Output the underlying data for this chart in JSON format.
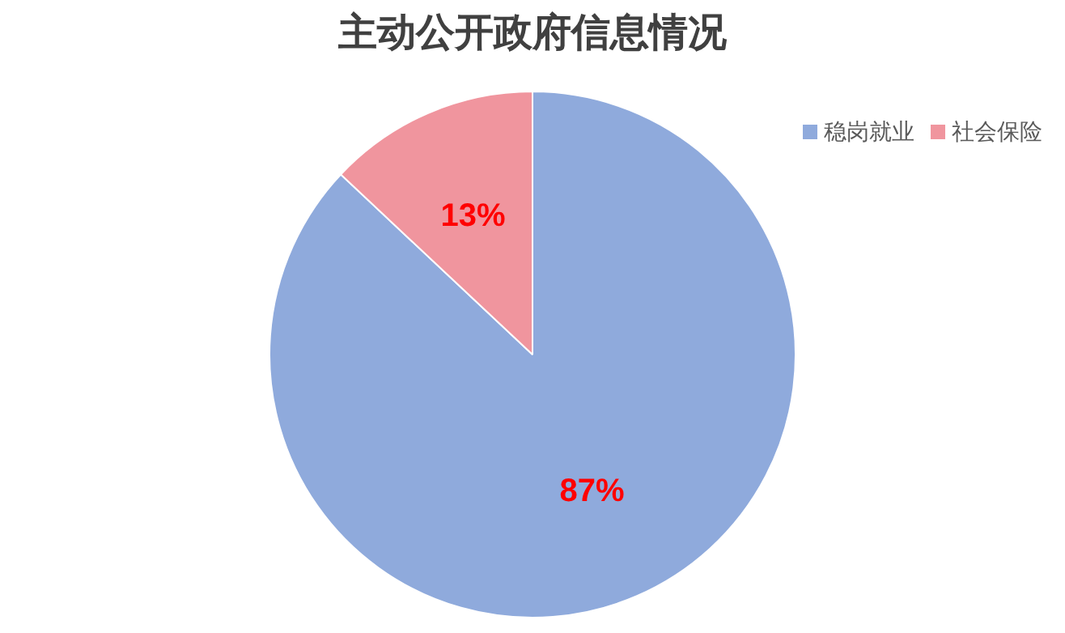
{
  "chart_data": {
    "type": "pie",
    "title": "主动公开政府信息情况",
    "categories": [
      "稳岗就业",
      "社会保险"
    ],
    "values": [
      87,
      13
    ],
    "value_labels": [
      "87%",
      "13%"
    ],
    "colors": [
      "#8faadc",
      "#f0959e"
    ],
    "legend": "top right"
  }
}
